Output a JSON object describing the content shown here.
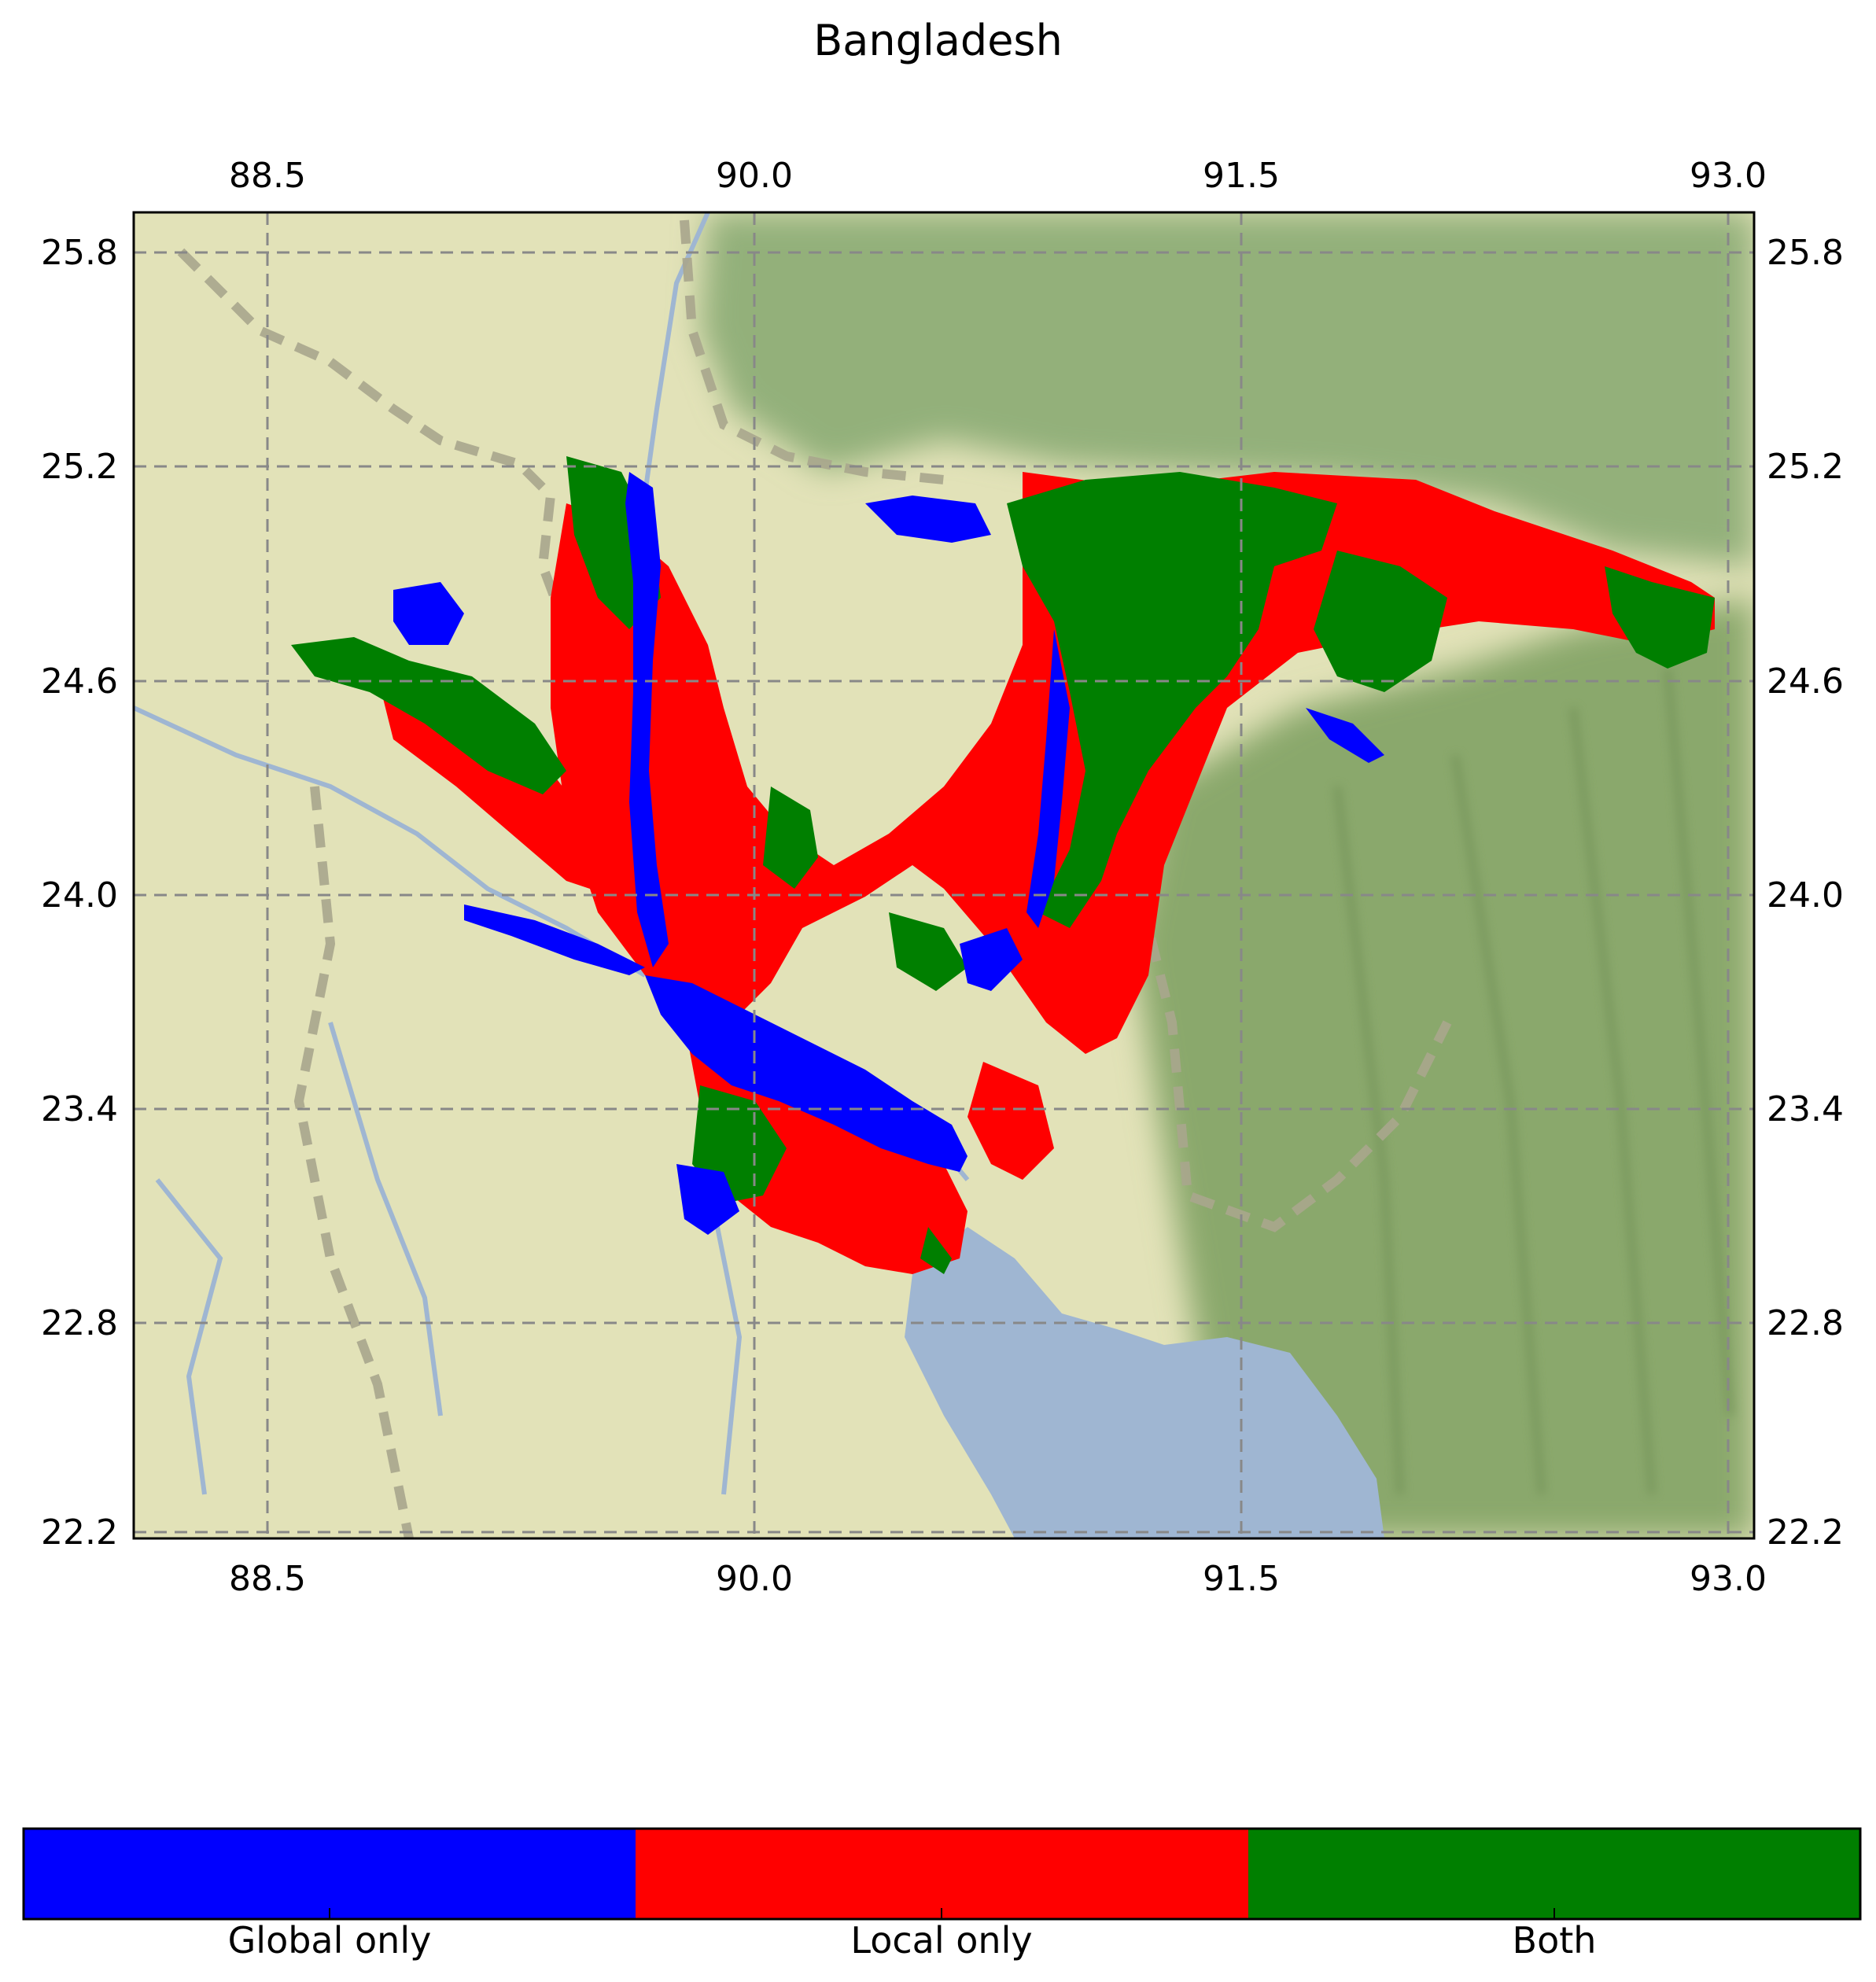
{
  "title": "Bangladesh",
  "map": {
    "lon_ticks": [
      "88.5",
      "90.0",
      "91.5",
      "93.0"
    ],
    "lat_ticks": [
      "25.8",
      "25.2",
      "24.6",
      "24.0",
      "23.4",
      "22.8",
      "22.2"
    ],
    "lon_range": [
      88.1,
      93.1
    ],
    "lat_range": [
      22.2,
      25.9
    ],
    "grid": true,
    "grid_style": "dashed"
  },
  "legend": {
    "items": [
      {
        "label": "Global only",
        "color": "#0000ff"
      },
      {
        "label": "Local only",
        "color": "#ff0000"
      },
      {
        "label": "Both",
        "color": "#007f00"
      }
    ]
  },
  "colors": {
    "land": "#e2e2b8",
    "water": "#9fb6d2",
    "hills": "#8fae74"
  }
}
